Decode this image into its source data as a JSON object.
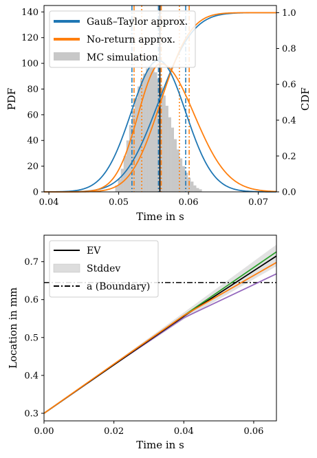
{
  "chart_data": [
    {
      "type": "histogram+line",
      "xlabel": "Time in s",
      "ylabel_left": "PDF",
      "ylabel_right": "CDF",
      "xlim": [
        0.0393,
        0.0726
      ],
      "ylim_left": [
        0,
        145
      ],
      "ylim_right": [
        0,
        1.04
      ],
      "xticks": [
        "0.04",
        "0.05",
        "0.06",
        "0.07"
      ],
      "xtick_values": [
        0.04,
        0.05,
        0.06,
        0.07
      ],
      "yticks_left": [
        "0",
        "20",
        "40",
        "60",
        "80",
        "100",
        "120",
        "140"
      ],
      "ytick_values_left": [
        0,
        20,
        40,
        60,
        80,
        100,
        120,
        140
      ],
      "yticks_right": [
        "0.0",
        "0.2",
        "0.4",
        "0.6",
        "0.8",
        "1.0"
      ],
      "ytick_values_right": [
        0,
        0.2,
        0.4,
        0.6,
        0.8,
        1.0
      ],
      "legend_position": "top-left",
      "series": [
        {
          "name": "Gauß–Taylor approx.",
          "color": "#1f77b4",
          "mean": 0.0557,
          "std": 0.0039
        },
        {
          "name": "No-return approx.",
          "color": "#ff7f0e",
          "mean": 0.056,
          "std": 0.004,
          "skew": 0.0008
        },
        {
          "name": "MC simulation",
          "color": "#c8c8c8",
          "kind": "histogram",
          "bin_start": 0.0495,
          "bin_width": 0.0004,
          "values": [
            5,
            10,
            18,
            28,
            40,
            52,
            63,
            73,
            82,
            88,
            92,
            96,
            98,
            97,
            93,
            88,
            82,
            75,
            67,
            58,
            50,
            41,
            33,
            26,
            20,
            15,
            11,
            8,
            5,
            3,
            2
          ]
        }
      ],
      "vertical_lines": [
        {
          "x": 0.0559,
          "color": "#000000",
          "style": "solid"
        },
        {
          "x": 0.0519,
          "color": "#1f77b4",
          "style": "dashdot"
        },
        {
          "x": 0.0557,
          "color": "#1f77b4",
          "style": "dashdot"
        },
        {
          "x": 0.0596,
          "color": "#1f77b4",
          "style": "dashdot"
        },
        {
          "x": 0.0522,
          "color": "#ff7f0e",
          "style": "dashdot"
        },
        {
          "x": 0.0561,
          "color": "#ff7f0e",
          "style": "dashdot"
        },
        {
          "x": 0.0601,
          "color": "#ff7f0e",
          "style": "dashdot"
        },
        {
          "x": 0.0533,
          "color": "#ff7f0e",
          "style": "dotted"
        },
        {
          "x": 0.0587,
          "color": "#ff7f0e",
          "style": "dotted"
        }
      ]
    },
    {
      "type": "line",
      "xlabel": "Time in s",
      "ylabel": "Location in mm",
      "xlim": [
        0,
        0.0665
      ],
      "ylim": [
        0.28,
        0.77
      ],
      "xticks": [
        "0.00",
        "0.02",
        "0.04",
        "0.06"
      ],
      "xtick_values": [
        0,
        0.02,
        0.04,
        0.06
      ],
      "yticks": [
        "0.3",
        "0.4",
        "0.5",
        "0.6",
        "0.7"
      ],
      "ytick_values": [
        0.3,
        0.4,
        0.5,
        0.6,
        0.7
      ],
      "legend_position": "top-left",
      "legend": [
        "EV",
        "Stddev",
        "a (Boundary)"
      ],
      "boundary": 0.645,
      "series": [
        {
          "name": "EV",
          "color": "#000000",
          "x": [
            0,
            0.02,
            0.04,
            0.0665
          ],
          "y": [
            0.3,
            0.428,
            0.556,
            0.715
          ]
        },
        {
          "color": "#9467bd",
          "x": [
            0,
            0.02,
            0.04,
            0.0665
          ],
          "y": [
            0.3,
            0.428,
            0.552,
            0.668
          ]
        },
        {
          "color": "#2ca02c",
          "x": [
            0,
            0.02,
            0.04,
            0.0665
          ],
          "y": [
            0.3,
            0.429,
            0.558,
            0.726
          ]
        },
        {
          "color": "#ff7f0e",
          "x": [
            0,
            0.02,
            0.04,
            0.0665
          ],
          "y": [
            0.3,
            0.43,
            0.558,
            0.698
          ]
        }
      ],
      "stddev_band": {
        "x": [
          0,
          0.02,
          0.04,
          0.0665
        ],
        "lower": [
          0.3,
          0.426,
          0.548,
          0.688
        ],
        "upper": [
          0.3,
          0.432,
          0.566,
          0.745
        ]
      }
    }
  ]
}
